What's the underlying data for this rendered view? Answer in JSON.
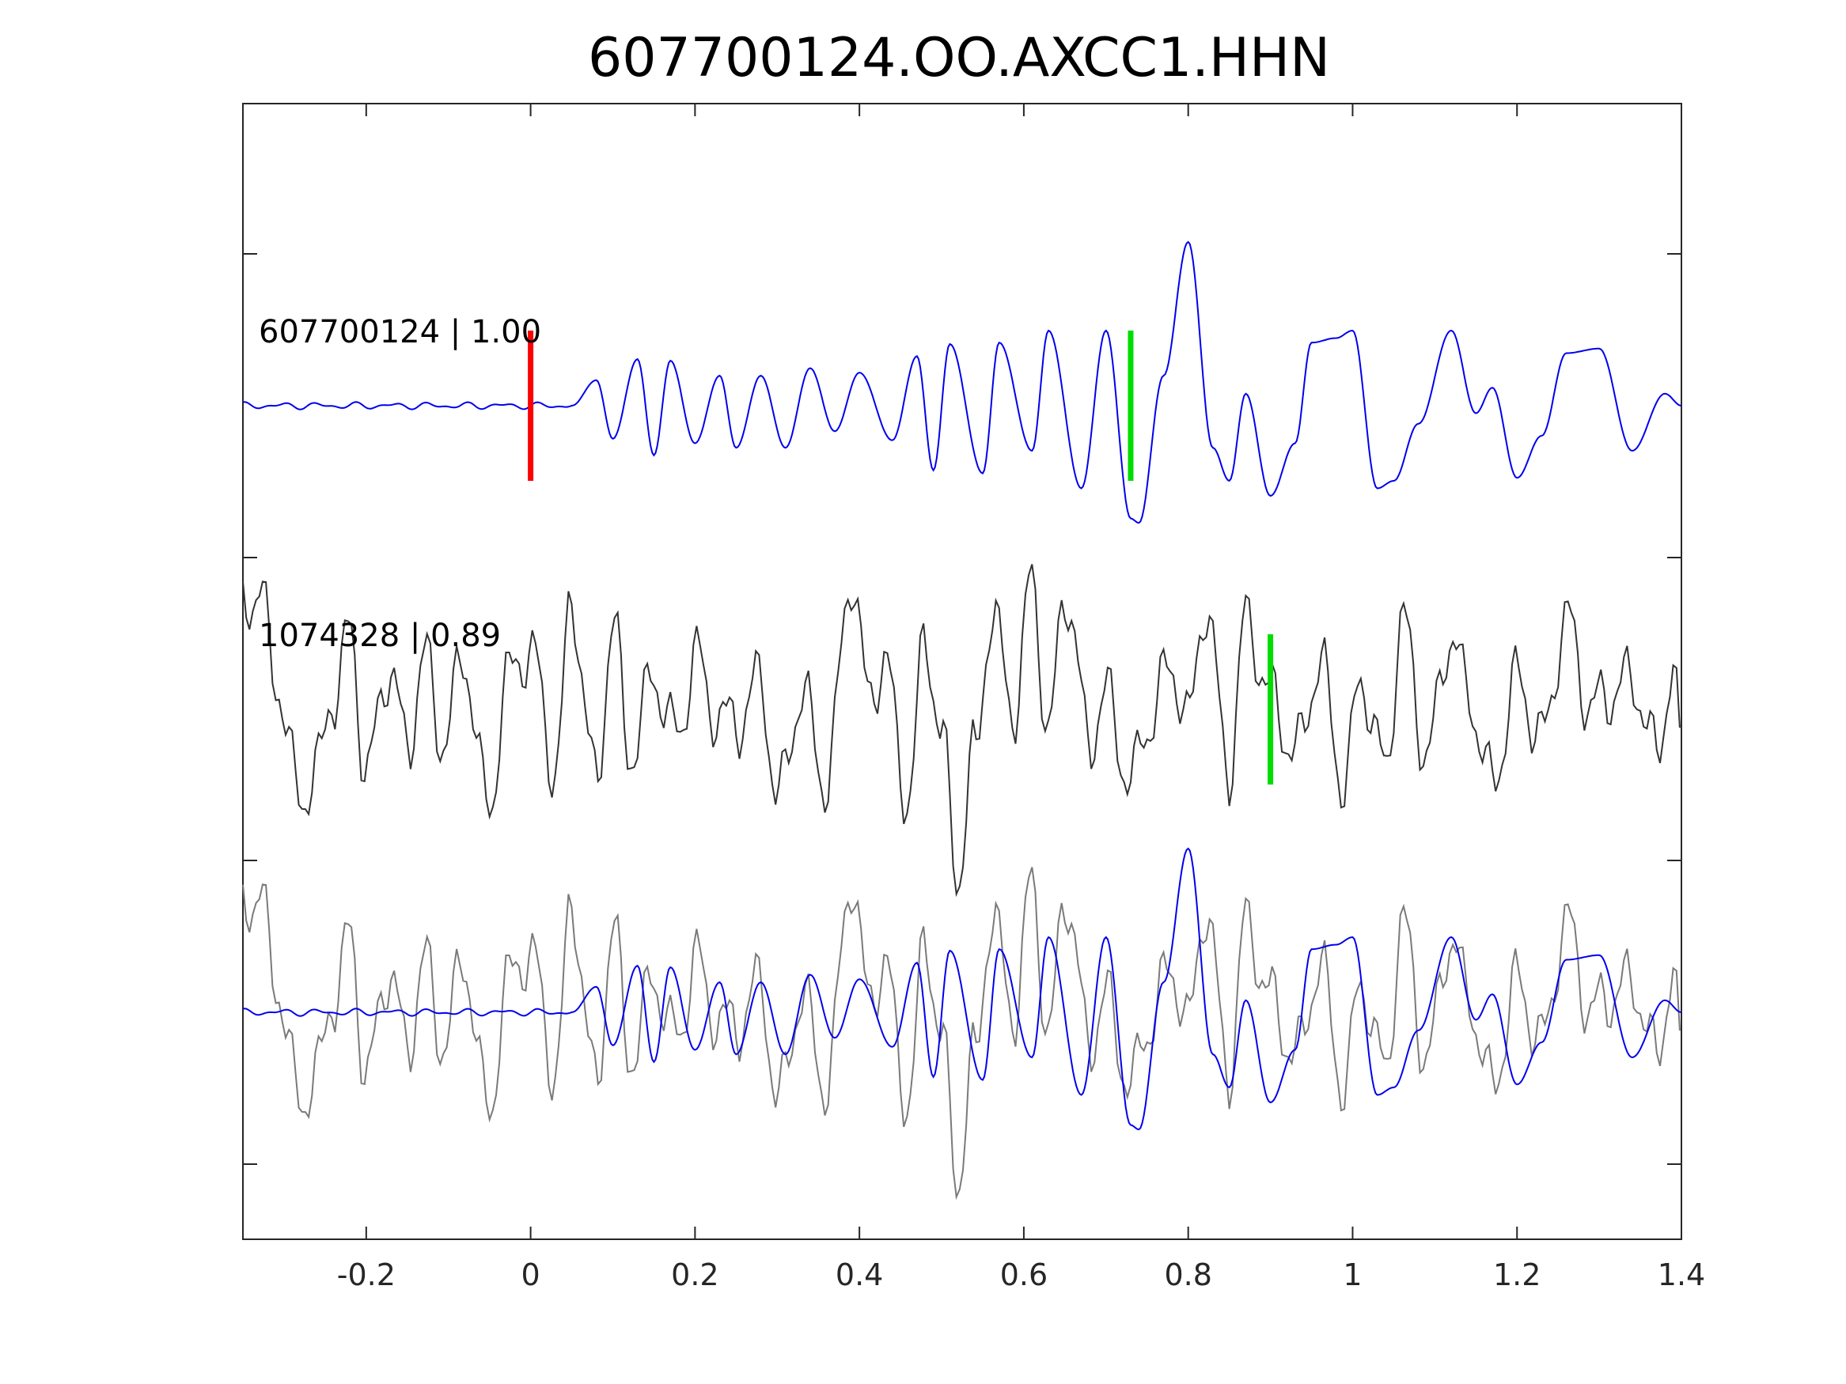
{
  "chart_data": {
    "type": "line",
    "title": "607700124.OO.AXCC1.HHN",
    "xlabel": "",
    "ylabel": "",
    "xlim": [
      -0.35,
      1.4
    ],
    "xticks": [
      -0.2,
      0,
      0.2,
      0.4,
      0.6,
      0.8,
      1,
      1.2,
      1.4
    ],
    "xtick_labels": [
      "-0.2",
      "0",
      "0.2",
      "0.4",
      "0.6",
      "0.8",
      "1",
      "1.2",
      "1.4"
    ],
    "grid": false,
    "colors": {
      "template": "#0000ee",
      "detection_top": "#333333",
      "detection_overlay": "#7a7a7a",
      "pick_p": "#ff0000",
      "pick_s": "#00dd00",
      "axes": "#262626"
    },
    "traces": [
      {
        "label": "607700124 | 1.00",
        "role": "template"
      },
      {
        "label": "1074328 | 0.89",
        "role": "detection"
      }
    ],
    "picks": [
      {
        "trace": 0,
        "time": 0.0,
        "color": "red"
      },
      {
        "trace": 0,
        "time": 0.73,
        "color": "green"
      },
      {
        "trace": 1,
        "time": 0.9,
        "color": "green"
      }
    ],
    "template_envelope": {
      "x": [
        -0.35,
        -0.1,
        0.0,
        0.05,
        0.08,
        0.1,
        0.13,
        0.15,
        0.17,
        0.2,
        0.23,
        0.25,
        0.28,
        0.31,
        0.34,
        0.37,
        0.4,
        0.44,
        0.47,
        0.49,
        0.51,
        0.55,
        0.57,
        0.61,
        0.63,
        0.67,
        0.7,
        0.73,
        0.74,
        0.77,
        0.8,
        0.83,
        0.85,
        0.87,
        0.9,
        0.93,
        0.95,
        0.98,
        1.0,
        1.03,
        1.05,
        1.08,
        1.12,
        1.15,
        1.17,
        1.2,
        1.23,
        1.26,
        1.3,
        1.34,
        1.38,
        1.4
      ],
      "y": [
        0.0,
        0.0,
        0.0,
        0.0,
        0.17,
        -0.22,
        0.31,
        -0.33,
        0.3,
        -0.25,
        0.2,
        -0.28,
        0.2,
        -0.28,
        0.25,
        -0.17,
        0.22,
        -0.23,
        0.33,
        -0.43,
        0.41,
        -0.45,
        0.42,
        -0.3,
        0.5,
        -0.55,
        0.5,
        -0.75,
        -0.78,
        0.2,
        1.09,
        -0.28,
        -0.5,
        0.08,
        -0.6,
        -0.25,
        0.42,
        0.45,
        0.5,
        -0.55,
        -0.5,
        -0.12,
        0.5,
        -0.05,
        0.12,
        -0.48,
        -0.2,
        0.35,
        0.38,
        -0.3,
        0.08,
        0.0
      ]
    },
    "detection_envelope": {
      "x": [
        -0.35,
        -0.33,
        -0.31,
        -0.28,
        -0.26,
        -0.24,
        -0.22,
        -0.2,
        -0.17,
        -0.15,
        -0.13,
        -0.11,
        -0.08,
        -0.05,
        -0.03,
        0.0,
        0.03,
        0.05,
        0.08,
        0.1,
        0.12,
        0.15,
        0.18,
        0.2,
        0.22,
        0.25,
        0.28,
        0.3,
        0.33,
        0.36,
        0.39,
        0.41,
        0.43,
        0.46,
        0.48,
        0.5,
        0.52,
        0.54,
        0.56,
        0.59,
        0.61,
        0.63,
        0.65,
        0.68,
        0.7,
        0.73,
        0.75,
        0.78,
        0.8,
        0.82,
        0.85,
        0.87,
        0.9,
        0.93,
        0.96,
        0.99,
        1.01,
        1.04,
        1.06,
        1.09,
        1.12,
        1.14,
        1.17,
        1.2,
        1.23,
        1.26,
        1.29,
        1.31,
        1.34,
        1.37,
        1.39,
        1.4
      ],
      "y": [
        0.7,
        0.8,
        0.2,
        -0.6,
        -0.4,
        0.1,
        0.5,
        -0.4,
        0.3,
        -0.3,
        0.4,
        -0.2,
        0.3,
        -0.7,
        0.2,
        0.4,
        -0.4,
        0.7,
        -0.5,
        0.6,
        -0.3,
        0.2,
        -0.2,
        0.4,
        0.0,
        -0.1,
        0.2,
        -0.6,
        0.1,
        -0.5,
        0.9,
        0.1,
        0.3,
        -0.6,
        0.5,
        -0.2,
        -1.1,
        -0.3,
        0.6,
        0.0,
        0.9,
        -0.2,
        0.8,
        -0.2,
        0.1,
        -0.5,
        -0.1,
        0.3,
        -0.1,
        0.7,
        -0.4,
        0.6,
        0.1,
        -0.3,
        0.3,
        -0.5,
        0.2,
        -0.4,
        0.6,
        -0.3,
        0.5,
        0.1,
        -0.5,
        0.2,
        -0.2,
        0.6,
        0.0,
        0.1,
        0.2,
        -0.3,
        0.3,
        -0.4
      ]
    }
  }
}
